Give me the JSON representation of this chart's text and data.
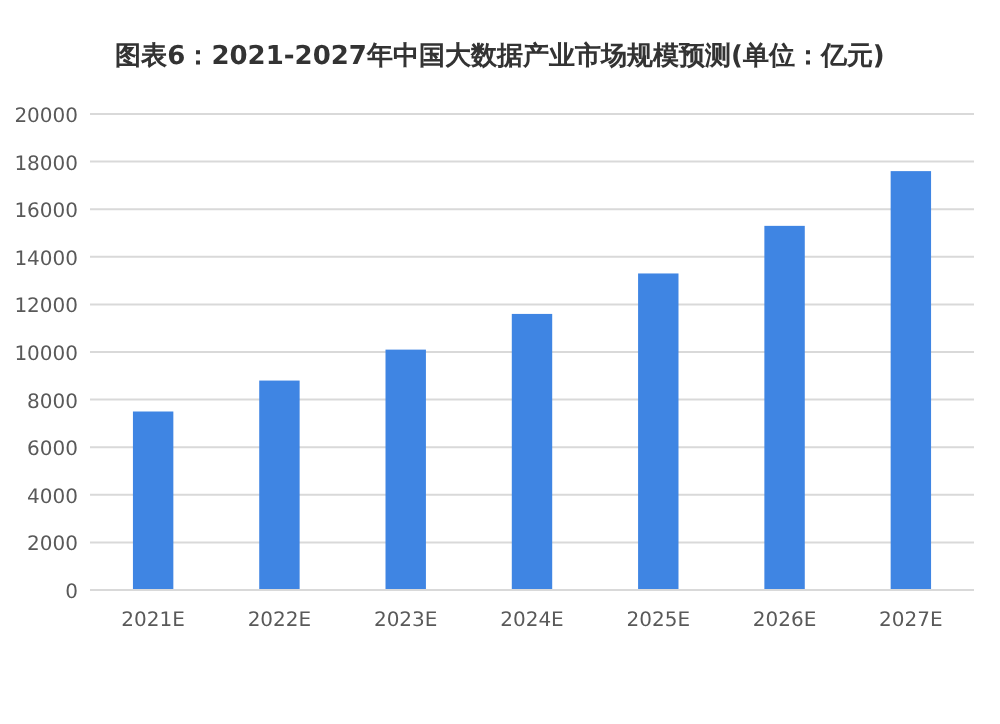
{
  "chart_data": {
    "type": "bar",
    "title": "图表6：2021-2027年中国大数据产业市场规模预测(单位：亿元)",
    "categories": [
      "2021E",
      "2022E",
      "2023E",
      "2024E",
      "2025E",
      "2026E",
      "2027E"
    ],
    "values": [
      7500,
      8800,
      10100,
      11600,
      13300,
      15300,
      17600
    ],
    "color": "#3f85e3",
    "ylim": [
      0,
      20000
    ],
    "yticks": [
      0,
      2000,
      4000,
      6000,
      8000,
      10000,
      12000,
      14000,
      16000,
      18000,
      20000
    ],
    "grid": "y"
  }
}
